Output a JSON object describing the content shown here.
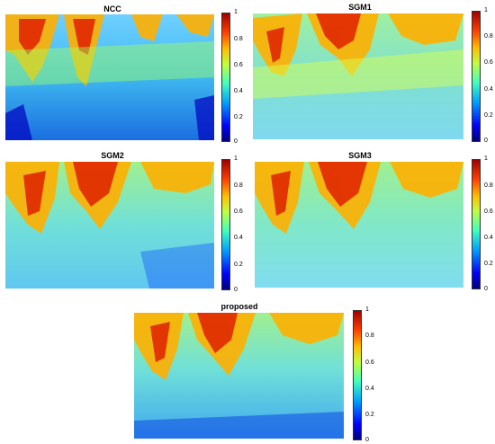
{
  "chart_data": [
    {
      "type": "heatmap",
      "title": "NCC",
      "colorbar": {
        "min": 0,
        "max": 1,
        "ticks": [
          "0",
          "0.2",
          "0.4",
          "0.6",
          "0.8",
          "1"
        ]
      }
    },
    {
      "type": "heatmap",
      "title": "SGM1",
      "colorbar": {
        "min": 0,
        "max": 1,
        "ticks": [
          "0",
          "0.2",
          "0.4",
          "0.6",
          "0.8",
          "1"
        ]
      }
    },
    {
      "type": "heatmap",
      "title": "SGM2",
      "colorbar": {
        "min": 0,
        "max": 1,
        "ticks": [
          "0",
          "0.2",
          "0.4",
          "0.6",
          "0.8",
          "1"
        ]
      }
    },
    {
      "type": "heatmap",
      "title": "SGM3",
      "colorbar": {
        "min": 0,
        "max": 1,
        "ticks": [
          "0",
          "0.2",
          "0.4",
          "0.6",
          "0.8",
          "1"
        ]
      }
    },
    {
      "type": "heatmap",
      "title": "proposed",
      "colorbar": {
        "min": 0,
        "max": 1,
        "ticks": [
          "0",
          "0.2",
          "0.4",
          "0.6",
          "0.8",
          "1"
        ]
      }
    }
  ],
  "colormap": "jet"
}
